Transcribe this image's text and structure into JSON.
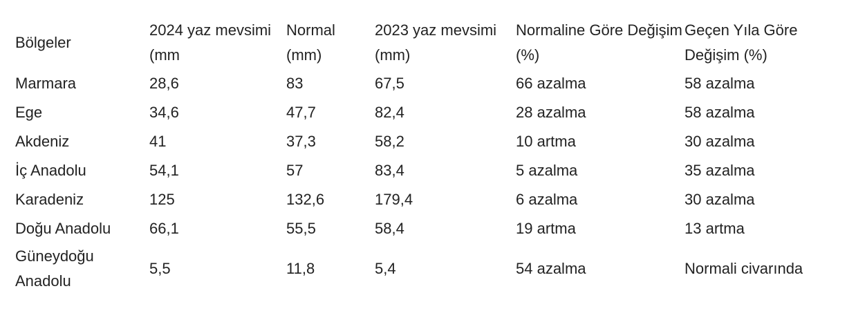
{
  "chart_data": {
    "type": "table",
    "columns": [
      "Bölgeler",
      "2024 yaz mevsimi (mm",
      "Normal (mm)",
      "2023 yaz mevsimi (mm)",
      "Normaline Göre Değişim (%)",
      "Geçen Yıla Göre Değişim (%)"
    ],
    "rows": [
      [
        "Marmara",
        "28,6",
        "83",
        "67,5",
        "66 azalma",
        "58 azalma"
      ],
      [
        "Ege",
        "34,6",
        "47,7",
        "82,4",
        "28 azalma",
        "58 azalma"
      ],
      [
        "Akdeniz",
        "41",
        "37,3",
        "58,2",
        "10 artma",
        "30 azalma"
      ],
      [
        "İç Anadolu",
        "54,1",
        "57",
        "83,4",
        "5 azalma",
        "35 azalma"
      ],
      [
        "Karadeniz",
        "125",
        "132,6",
        "179,4",
        "6 azalma",
        "30 azalma"
      ],
      [
        "Doğu Anadolu",
        "66,1",
        "55,5",
        "58,4",
        "19 artma",
        "13 artma"
      ],
      [
        "Güneydoğu Anadolu",
        "5,5",
        "11,8",
        "5,4",
        "54 azalma",
        "Normali civarında"
      ]
    ]
  }
}
